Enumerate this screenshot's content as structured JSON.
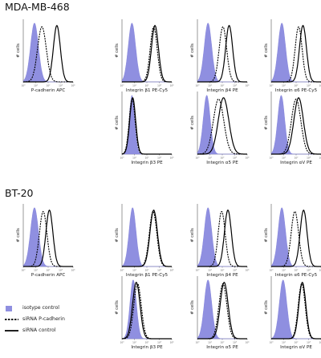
{
  "sections": [
    {
      "title": "MDA-MB-468"
    },
    {
      "title": "BT-20"
    }
  ],
  "y_label": "# cells",
  "colors": {
    "isotype": "#8f8fe0",
    "isotype_edge": "#7d7dd8",
    "line": "#000000",
    "axis": "#555555"
  },
  "legend": [
    {
      "label": "isotype control",
      "style": "fill",
      "color": "#8f8fe0"
    },
    {
      "label": "siRNA P-cadherin",
      "style": "dashed",
      "color": "#000000"
    },
    {
      "label": "siRNA control",
      "style": "solid",
      "color": "#000000"
    }
  ],
  "chart_data": [
    {
      "type": "area",
      "section": "MDA-MB-468",
      "xlabel": "P-cadherin APC",
      "ylabel": "# cells",
      "x_scale": "log",
      "x_ticks": [
        "10⁰",
        "10¹",
        "10²",
        "10³",
        "10⁴"
      ],
      "series": [
        {
          "role": "isotype control",
          "peak_log10": 0.9,
          "width": 0.32
        },
        {
          "role": "siRNA P-cadherin",
          "peak_log10": 1.5,
          "width": 0.35
        },
        {
          "role": "siRNA control",
          "peak_log10": 2.7,
          "width": 0.28
        }
      ]
    },
    {
      "type": "area",
      "section": "MDA-MB-468",
      "xlabel": "Integrin β1 PE-Cy5",
      "ylabel": "# cells",
      "x_scale": "log",
      "x_ticks": [
        "10⁰",
        "10¹",
        "10²",
        "10³",
        "10⁴"
      ],
      "series": [
        {
          "role": "isotype control",
          "peak_log10": 0.8,
          "width": 0.3
        },
        {
          "role": "siRNA P-cadherin",
          "peak_log10": 2.55,
          "width": 0.28
        },
        {
          "role": "siRNA control",
          "peak_log10": 2.65,
          "width": 0.28
        }
      ]
    },
    {
      "type": "area",
      "section": "MDA-MB-468",
      "xlabel": "Integrin β4 PE",
      "ylabel": "# cells",
      "x_scale": "log",
      "x_ticks": [
        "10⁰",
        "10¹",
        "10²",
        "10³",
        "10⁴"
      ],
      "series": [
        {
          "role": "isotype control",
          "peak_log10": 0.85,
          "width": 0.3
        },
        {
          "role": "siRNA P-cadherin",
          "peak_log10": 2.05,
          "width": 0.3
        },
        {
          "role": "siRNA control",
          "peak_log10": 2.55,
          "width": 0.28
        }
      ]
    },
    {
      "type": "area",
      "section": "MDA-MB-468",
      "xlabel": "Integrin α6 PE-Cy5",
      "ylabel": "# cells",
      "x_scale": "log",
      "x_ticks": [
        "10⁰",
        "10¹",
        "10²",
        "10³",
        "10⁴"
      ],
      "series": [
        {
          "role": "isotype control",
          "peak_log10": 0.85,
          "width": 0.3
        },
        {
          "role": "siRNA P-cadherin",
          "peak_log10": 2.2,
          "width": 0.28
        },
        {
          "role": "siRNA control",
          "peak_log10": 2.55,
          "width": 0.28
        }
      ]
    },
    {
      "type": "area",
      "section": "MDA-MB-468",
      "xlabel": "Integrin β3 PE",
      "ylabel": "# cells",
      "x_scale": "log",
      "x_ticks": [
        "10⁰",
        "10¹",
        "10²",
        "10³",
        "10⁴"
      ],
      "series": [
        {
          "role": "isotype control",
          "peak_log10": 0.8,
          "width": 0.22
        },
        {
          "role": "siRNA P-cadherin",
          "peak_log10": 0.82,
          "width": 0.24
        },
        {
          "role": "siRNA control",
          "peak_log10": 0.86,
          "width": 0.24
        }
      ]
    },
    {
      "type": "area",
      "section": "MDA-MB-468",
      "xlabel": "Integrin α5 PE",
      "ylabel": "# cells",
      "x_scale": "log",
      "x_ticks": [
        "10⁰",
        "10¹",
        "10²",
        "10³",
        "10⁴"
      ],
      "series": [
        {
          "role": "isotype control",
          "peak_log10": 0.75,
          "width": 0.28
        },
        {
          "role": "siRNA P-cadherin",
          "peak_log10": 1.7,
          "width": 0.42
        },
        {
          "role": "siRNA control",
          "peak_log10": 2.1,
          "width": 0.42
        }
      ]
    },
    {
      "type": "area",
      "section": "MDA-MB-468",
      "xlabel": "Integrin αV PE",
      "ylabel": "# cells",
      "x_scale": "log",
      "x_ticks": [
        "10⁰",
        "10¹",
        "10²",
        "10³",
        "10⁴"
      ],
      "series": [
        {
          "role": "isotype control",
          "peak_log10": 0.8,
          "width": 0.28
        },
        {
          "role": "siRNA P-cadherin",
          "peak_log10": 2.0,
          "width": 0.38
        },
        {
          "role": "siRNA control",
          "peak_log10": 2.2,
          "width": 0.38
        }
      ]
    },
    {
      "type": "area",
      "section": "BT-20",
      "xlabel": "P-cadherin APC",
      "ylabel": "# cells",
      "x_scale": "log",
      "x_ticks": [
        "10⁰",
        "10¹",
        "10²",
        "10³",
        "10⁴"
      ],
      "series": [
        {
          "role": "isotype control",
          "peak_log10": 0.9,
          "width": 0.32
        },
        {
          "role": "siRNA P-cadherin",
          "peak_log10": 1.6,
          "width": 0.3
        },
        {
          "role": "siRNA control",
          "peak_log10": 2.1,
          "width": 0.28
        }
      ]
    },
    {
      "type": "area",
      "section": "BT-20",
      "xlabel": "Integrin β1 PE-Cy5",
      "ylabel": "# cells",
      "x_scale": "log",
      "x_ticks": [
        "10⁰",
        "10¹",
        "10²",
        "10³",
        "10⁴"
      ],
      "series": [
        {
          "role": "isotype control",
          "peak_log10": 0.85,
          "width": 0.28
        },
        {
          "role": "siRNA P-cadherin",
          "peak_log10": 2.5,
          "width": 0.3
        },
        {
          "role": "siRNA control",
          "peak_log10": 2.55,
          "width": 0.3
        }
      ]
    },
    {
      "type": "area",
      "section": "BT-20",
      "xlabel": "Integrin β4 PE",
      "ylabel": "# cells",
      "x_scale": "log",
      "x_ticks": [
        "10⁰",
        "10¹",
        "10²",
        "10³",
        "10⁴"
      ],
      "series": [
        {
          "role": "isotype control",
          "peak_log10": 0.85,
          "width": 0.3
        },
        {
          "role": "siRNA P-cadherin",
          "peak_log10": 1.95,
          "width": 0.28
        },
        {
          "role": "siRNA control",
          "peak_log10": 2.45,
          "width": 0.28
        }
      ]
    },
    {
      "type": "area",
      "section": "BT-20",
      "xlabel": "Integrin α6 PE-Cy5",
      "ylabel": "# cells",
      "x_scale": "log",
      "x_ticks": [
        "10⁰",
        "10¹",
        "10²",
        "10³",
        "10⁴"
      ],
      "series": [
        {
          "role": "isotype control",
          "peak_log10": 0.85,
          "width": 0.3
        },
        {
          "role": "siRNA P-cadherin",
          "peak_log10": 1.9,
          "width": 0.3
        },
        {
          "role": "siRNA control",
          "peak_log10": 2.6,
          "width": 0.28
        }
      ]
    },
    {
      "type": "area",
      "section": "BT-20",
      "xlabel": "Integrin β3 PE",
      "ylabel": "# cells",
      "x_scale": "log",
      "x_ticks": [
        "10⁰",
        "10¹",
        "10²",
        "10³",
        "10⁴"
      ],
      "series": [
        {
          "role": "isotype control",
          "peak_log10": 0.9,
          "width": 0.26
        },
        {
          "role": "siRNA P-cadherin",
          "peak_log10": 1.25,
          "width": 0.3
        },
        {
          "role": "siRNA control",
          "peak_log10": 1.15,
          "width": 0.3
        }
      ]
    },
    {
      "type": "area",
      "section": "BT-20",
      "xlabel": "Integrin α5 PE",
      "ylabel": "# cells",
      "x_scale": "log",
      "x_ticks": [
        "10⁰",
        "10¹",
        "10²",
        "10³",
        "10⁴"
      ],
      "series": [
        {
          "role": "isotype control",
          "peak_log10": 0.85,
          "width": 0.3
        },
        {
          "role": "siRNA P-cadherin",
          "peak_log10": 2.05,
          "width": 0.32
        },
        {
          "role": "siRNA control",
          "peak_log10": 2.15,
          "width": 0.32
        }
      ]
    },
    {
      "type": "area",
      "section": "BT-20",
      "xlabel": "Integrin αV PE",
      "ylabel": "# cells",
      "x_scale": "log",
      "x_ticks": [
        "10⁰",
        "10¹",
        "10²",
        "10³",
        "10⁴"
      ],
      "series": [
        {
          "role": "isotype control",
          "peak_log10": 0.95,
          "width": 0.3
        },
        {
          "role": "siRNA P-cadherin",
          "peak_log10": 2.45,
          "width": 0.28
        },
        {
          "role": "siRNA control",
          "peak_log10": 2.5,
          "width": 0.28
        }
      ]
    }
  ]
}
